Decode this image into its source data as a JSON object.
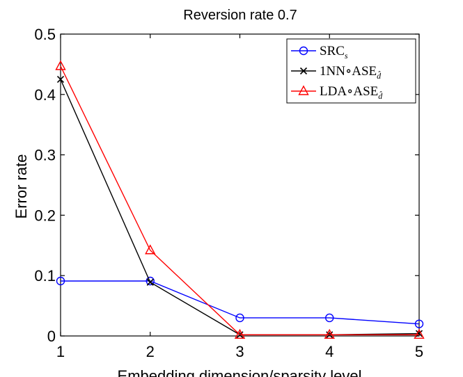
{
  "chart_data": {
    "type": "line",
    "title": "Reversion rate 0.7",
    "xlabel": "Embedding dimension/sparsity level",
    "ylabel": "Error rate",
    "x": [
      1,
      2,
      3,
      4,
      5
    ],
    "xlim": [
      1,
      5
    ],
    "ylim": [
      0,
      0.5
    ],
    "xticks": [
      "1",
      "2",
      "3",
      "4",
      "5"
    ],
    "yticks": [
      "0",
      "0.1",
      "0.2",
      "0.3",
      "0.4",
      "0.5"
    ],
    "grid": false,
    "legend_position": "top-right",
    "series": [
      {
        "name": "SRC",
        "name_sub": "s",
        "color": "#0000ff",
        "marker": "circle",
        "values": [
          0.091,
          0.091,
          0.03,
          0.03,
          0.02
        ]
      },
      {
        "name": "1NN∘ASE",
        "name_sub": "d̂",
        "color": "#000000",
        "marker": "x",
        "values": [
          0.425,
          0.089,
          0.002,
          0.002,
          0.004
        ]
      },
      {
        "name": "LDA∘ASE",
        "name_sub": "d̂",
        "color": "#ff0000",
        "marker": "triangle",
        "values": [
          0.447,
          0.142,
          0.002,
          0.002,
          0.002
        ]
      }
    ]
  }
}
